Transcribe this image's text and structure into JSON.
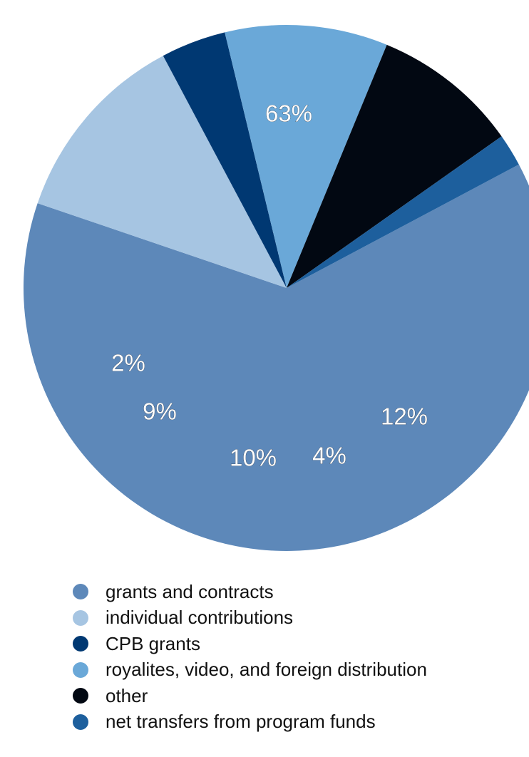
{
  "chart_data": {
    "type": "pie",
    "start_angle_deg": 62,
    "direction": "clockwise",
    "slices": [
      {
        "name": "grants and contracts",
        "value": 63,
        "label": "63%",
        "color": "#5d88b9"
      },
      {
        "name": "individual contributions",
        "value": 12,
        "label": "12%",
        "color": "#a6c5e2"
      },
      {
        "name": "CPB grants",
        "value": 4,
        "label": "4%",
        "color": "#003872"
      },
      {
        "name": "royalites, video, and foreign distribution",
        "value": 10,
        "label": "10%",
        "color": "#6aa8d8"
      },
      {
        "name": "other",
        "value": 9,
        "label": "9%",
        "color": "#020812"
      },
      {
        "name": "net transfers from program funds",
        "value": 2,
        "label": "2%",
        "color": "#1d5f9d"
      }
    ],
    "legend_position": "bottom"
  }
}
